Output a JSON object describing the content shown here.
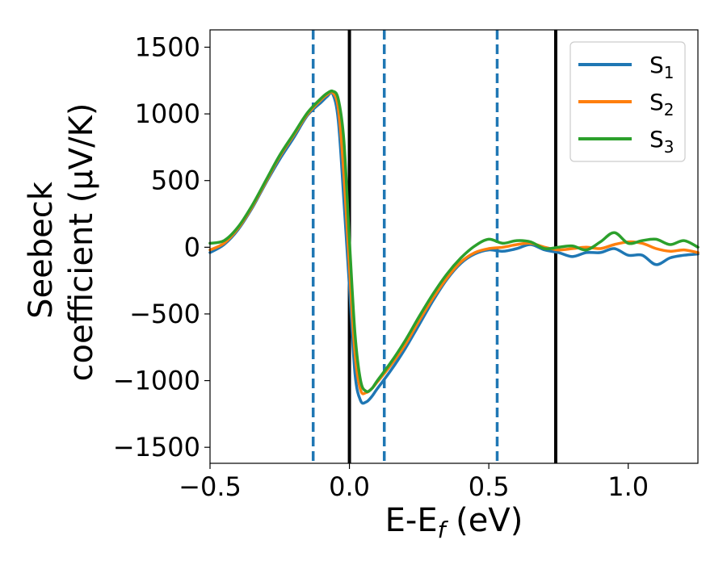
{
  "chart_data": {
    "type": "line",
    "title": "",
    "xlabel": {
      "main": "E-E",
      "sub": "f",
      "suffix": " (eV)"
    },
    "ylabel": {
      "line1": "Seebeck",
      "line2": "coefficient  (μV/K)"
    },
    "xlim": [
      -0.5,
      1.25
    ],
    "ylim": [
      -1620,
      1630
    ],
    "xticks": [
      -0.5,
      0.0,
      0.5,
      1.0
    ],
    "xtick_labels": [
      "−0.5",
      "0.0",
      "0.5",
      "1.0"
    ],
    "yticks": [
      -1500,
      -1000,
      -500,
      0,
      500,
      1000,
      1500
    ],
    "ytick_labels": [
      "−1500",
      "−1000",
      "−500",
      "0",
      "500",
      "1000",
      "1500"
    ],
    "grid": false,
    "legend_position": "top-right",
    "vlines": [
      {
        "x": -0.13,
        "style": "dashed",
        "color": "#1f77b4"
      },
      {
        "x": 0.0,
        "style": "solid",
        "color": "#000000"
      },
      {
        "x": 0.125,
        "style": "dashed",
        "color": "#1f77b4"
      },
      {
        "x": 0.53,
        "style": "dashed",
        "color": "#1f77b4"
      },
      {
        "x": 0.74,
        "style": "solid",
        "color": "#000000"
      }
    ],
    "series": [
      {
        "name": "S",
        "sub": "1",
        "color": "#1f77b4",
        "x": [
          -0.5,
          -0.45,
          -0.4,
          -0.35,
          -0.3,
          -0.25,
          -0.2,
          -0.15,
          -0.1,
          -0.08,
          -0.06,
          -0.04,
          -0.02,
          0.0,
          0.02,
          0.04,
          0.06,
          0.08,
          0.1,
          0.15,
          0.2,
          0.25,
          0.3,
          0.35,
          0.4,
          0.45,
          0.5,
          0.55,
          0.6,
          0.65,
          0.7,
          0.75,
          0.8,
          0.85,
          0.9,
          0.95,
          1.0,
          1.05,
          1.1,
          1.15,
          1.2,
          1.25
        ],
        "y": [
          -40,
          20,
          130,
          290,
          480,
          660,
          820,
          990,
          1090,
          1130,
          1150,
          950,
          350,
          -300,
          -950,
          -1150,
          -1160,
          -1120,
          -1060,
          -920,
          -760,
          -580,
          -400,
          -240,
          -120,
          -50,
          -20,
          -30,
          -10,
          20,
          -20,
          -40,
          -70,
          -40,
          -40,
          -10,
          -60,
          -60,
          -130,
          -80,
          -60,
          -50
        ]
      },
      {
        "name": "S",
        "sub": "2",
        "color": "#ff7f0e",
        "x": [
          -0.5,
          -0.45,
          -0.4,
          -0.35,
          -0.3,
          -0.25,
          -0.2,
          -0.15,
          -0.1,
          -0.08,
          -0.06,
          -0.04,
          -0.02,
          0.0,
          0.02,
          0.04,
          0.06,
          0.08,
          0.1,
          0.15,
          0.2,
          0.25,
          0.3,
          0.35,
          0.4,
          0.45,
          0.5,
          0.55,
          0.6,
          0.65,
          0.7,
          0.75,
          0.8,
          0.85,
          0.9,
          0.95,
          1.0,
          1.05,
          1.1,
          1.15,
          1.2,
          1.25
        ],
        "y": [
          -20,
          30,
          140,
          300,
          490,
          680,
          840,
          1000,
          1110,
          1145,
          1160,
          1040,
          550,
          -150,
          -800,
          -1070,
          -1090,
          -1060,
          -1010,
          -880,
          -730,
          -550,
          -380,
          -230,
          -110,
          -40,
          -10,
          0,
          20,
          30,
          0,
          -20,
          -10,
          0,
          -10,
          20,
          40,
          30,
          -10,
          -30,
          -20,
          -40
        ]
      },
      {
        "name": "S",
        "sub": "3",
        "color": "#2ca02c",
        "x": [
          -0.5,
          -0.45,
          -0.4,
          -0.35,
          -0.3,
          -0.25,
          -0.2,
          -0.15,
          -0.1,
          -0.08,
          -0.06,
          -0.04,
          -0.02,
          0.0,
          0.02,
          0.04,
          0.06,
          0.08,
          0.1,
          0.15,
          0.2,
          0.25,
          0.3,
          0.35,
          0.4,
          0.45,
          0.5,
          0.55,
          0.6,
          0.65,
          0.7,
          0.75,
          0.8,
          0.85,
          0.9,
          0.95,
          1.0,
          1.05,
          1.1,
          1.15,
          1.2,
          1.25
        ],
        "y": [
          30,
          50,
          150,
          310,
          500,
          690,
          850,
          1010,
          1120,
          1155,
          1170,
          1110,
          800,
          50,
          -650,
          -1000,
          -1080,
          -1060,
          -1000,
          -860,
          -700,
          -520,
          -350,
          -200,
          -80,
          10,
          60,
          30,
          50,
          40,
          -10,
          0,
          10,
          -20,
          40,
          110,
          30,
          50,
          60,
          20,
          50,
          0
        ]
      }
    ]
  }
}
